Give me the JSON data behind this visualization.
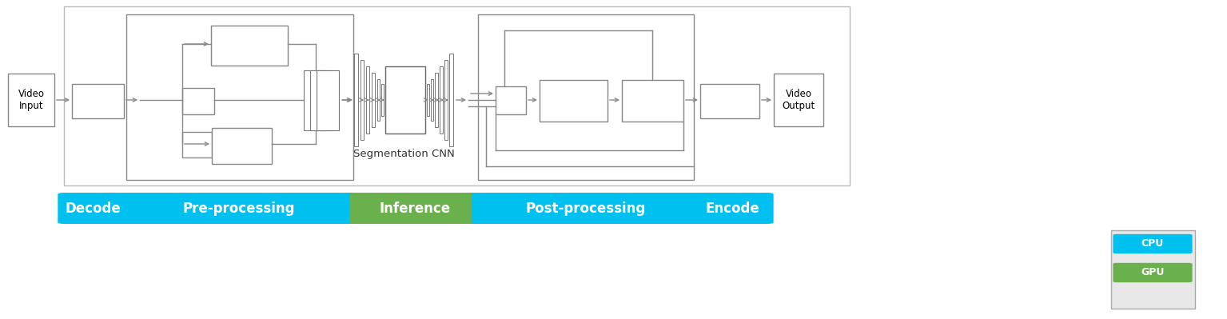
{
  "bg": "#ffffff",
  "ec": "#888888",
  "cpu_color": "#00c0f0",
  "gpu_color": "#6ab04c",
  "stage_labels": [
    {
      "text": "Decode",
      "xL": 0.073,
      "xR": 0.148,
      "color": "#00c0f0"
    },
    {
      "text": "Pre-processing",
      "xL": 0.152,
      "xR": 0.422,
      "color": "#00c0f0"
    },
    {
      "text": "Inference",
      "xL": 0.426,
      "xR": 0.575,
      "color": "#6ab04c"
    },
    {
      "text": "Post-processing",
      "xL": 0.579,
      "xR": 0.848,
      "color": "#00c0f0"
    },
    {
      "text": "Encode",
      "xL": 0.852,
      "xR": 0.93,
      "color": "#00c0f0"
    }
  ],
  "cnn_label": "Segmentation CNN"
}
